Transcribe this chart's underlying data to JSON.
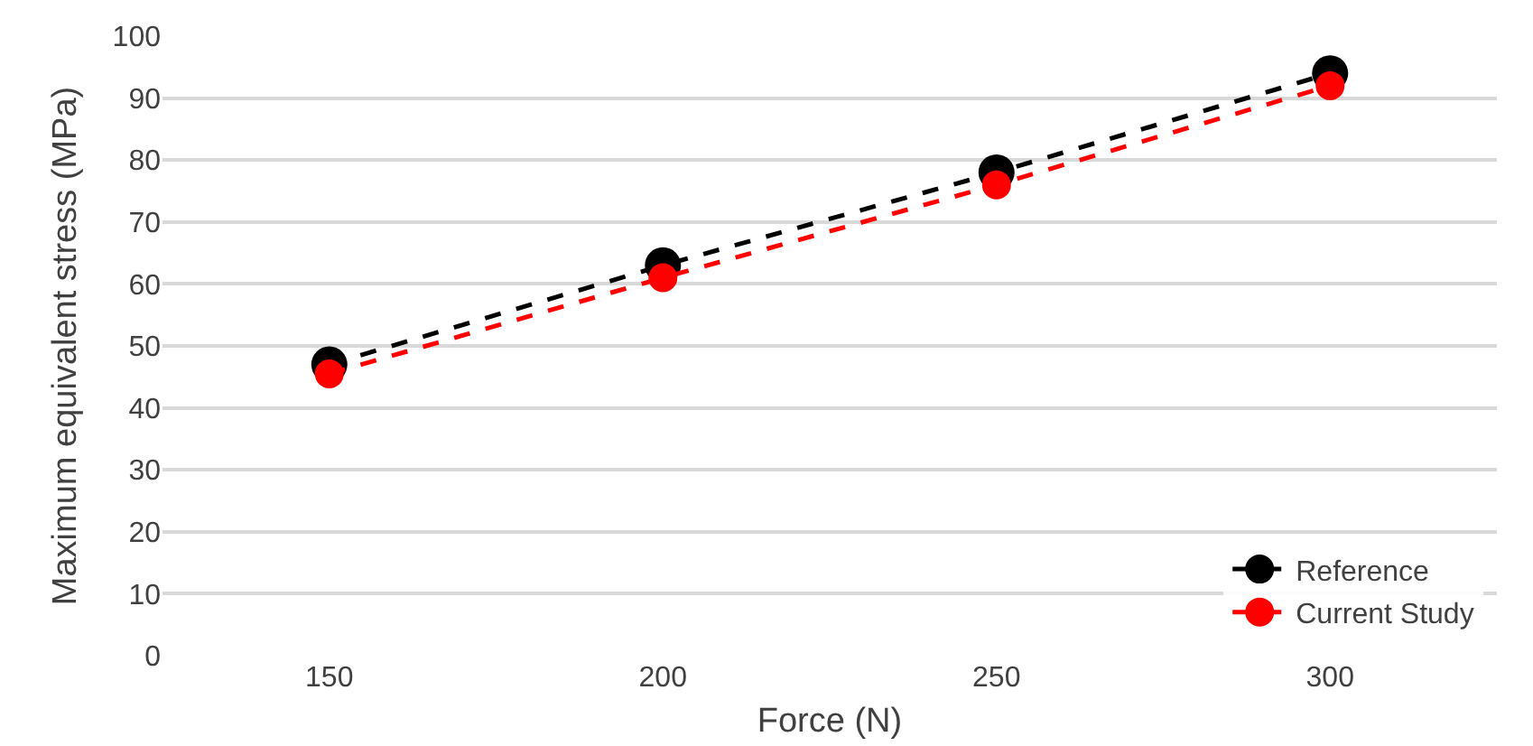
{
  "chart_data": {
    "type": "line",
    "xlabel": "Force (N)",
    "ylabel": "Maximum equivalent stress (MPa)",
    "categories": [
      "150",
      "200",
      "250",
      "300"
    ],
    "series": [
      {
        "name": "Reference",
        "color": "#000000",
        "values": [
          47,
          63,
          78,
          94
        ]
      },
      {
        "name": "Current Study",
        "color": "#ff0000",
        "values": [
          45.5,
          61,
          76,
          92
        ]
      }
    ],
    "ylim": [
      0,
      100
    ],
    "yticks": [
      0,
      10,
      20,
      30,
      40,
      50,
      60,
      70,
      80,
      90,
      100
    ],
    "grid": "y",
    "legend": "bottom right",
    "marker": "circle",
    "line_style": "dashed"
  }
}
